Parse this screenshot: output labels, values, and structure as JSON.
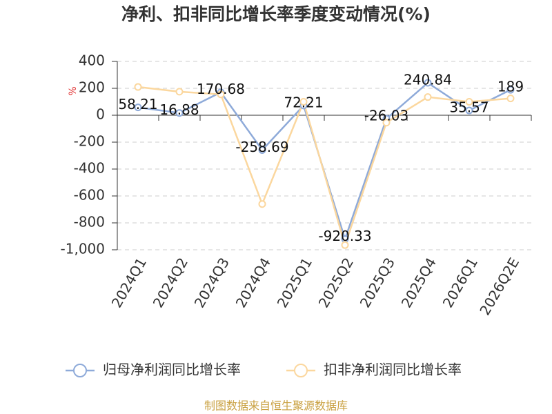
{
  "chart_data": {
    "type": "line",
    "title": "净利、扣非同比增长率季度变动情况(%)",
    "y_unit": "%",
    "categories": [
      "2024Q1",
      "2024Q2",
      "2024Q3",
      "2024Q4",
      "2025Q1",
      "2025Q2",
      "2025Q3",
      "2025Q4",
      "2026Q1",
      "2026Q2E"
    ],
    "series": [
      {
        "name": "归母净利润同比增长率",
        "color": "#8eaad9",
        "values": [
          58.21,
          16.88,
          170.68,
          -258.69,
          72.21,
          -920.33,
          -26.03,
          240.84,
          35.57,
          189
        ]
      },
      {
        "name": "扣非净利润同比增长率",
        "color": "#fbd79e",
        "values": [
          210,
          175,
          155,
          -660,
          100,
          -965,
          -55,
          135,
          100,
          125
        ]
      }
    ],
    "ylim": [
      -1000,
      400
    ],
    "yticks": [
      {
        "value": -1000,
        "label": "-1,000"
      },
      -800,
      -600,
      -400,
      -200,
      0,
      200,
      400
    ],
    "grid": true,
    "legend": "bottom",
    "source": "制图数据来自恒生聚源数据库"
  }
}
